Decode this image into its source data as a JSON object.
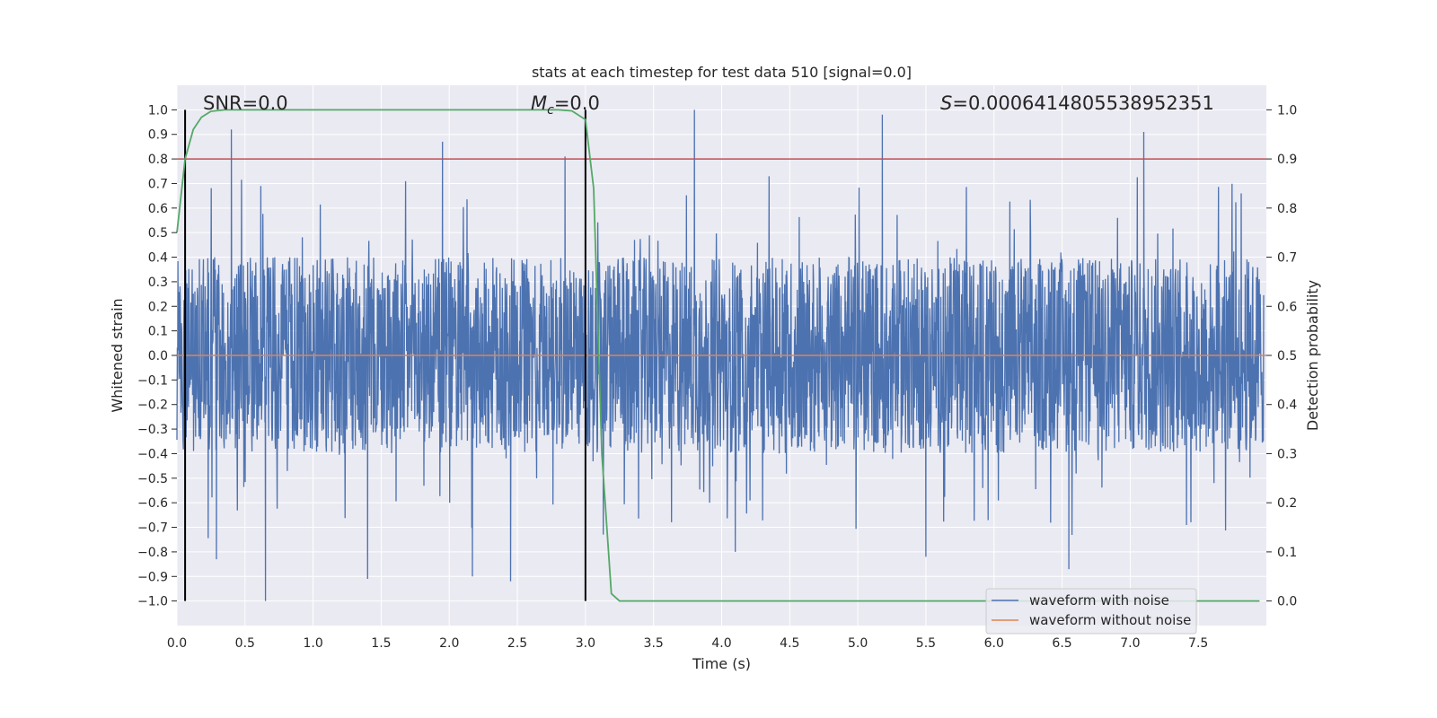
{
  "chart_data": {
    "type": "line",
    "title": "stats at each timestep for test data 510 [signal=0.0]",
    "xlabel": "Time (s)",
    "ylabel_left": "Whitened strain",
    "ylabel_right": "Detection probability",
    "xlim": [
      0.0,
      8.0
    ],
    "ylim_left": [
      -1.1,
      1.1
    ],
    "ylim_right": [
      -0.05,
      1.05
    ],
    "x_ticks": [
      "0.0",
      "0.5",
      "1.0",
      "1.5",
      "2.0",
      "2.5",
      "3.0",
      "3.5",
      "4.0",
      "4.5",
      "5.0",
      "5.5",
      "6.0",
      "6.5",
      "7.0",
      "7.5"
    ],
    "x_tick_values": [
      0.0,
      0.5,
      1.0,
      1.5,
      2.0,
      2.5,
      3.0,
      3.5,
      4.0,
      4.5,
      5.0,
      5.5,
      6.0,
      6.5,
      7.0,
      7.5
    ],
    "y_left_ticks": [
      "1.0",
      "0.9",
      "0.8",
      "0.7",
      "0.6",
      "0.5",
      "0.4",
      "0.3",
      "0.2",
      "0.1",
      "0.0",
      "−0.1",
      "−0.2",
      "−0.3",
      "−0.4",
      "−0.5",
      "−0.6",
      "−0.7",
      "−0.8",
      "−0.9",
      "−1.0"
    ],
    "y_left_tick_values": [
      1.0,
      0.9,
      0.8,
      0.7,
      0.6,
      0.5,
      0.4,
      0.3,
      0.2,
      0.1,
      0.0,
      -0.1,
      -0.2,
      -0.3,
      -0.4,
      -0.5,
      -0.6,
      -0.7,
      -0.8,
      -0.9,
      -1.0
    ],
    "y_right_ticks": [
      "1.0",
      "0.9",
      "0.8",
      "0.7",
      "0.6",
      "0.5",
      "0.4",
      "0.3",
      "0.2",
      "0.1",
      "0.0"
    ],
    "y_right_tick_values": [
      1.0,
      0.9,
      0.8,
      0.7,
      0.6,
      0.5,
      0.4,
      0.3,
      0.2,
      0.1,
      0.0
    ],
    "annotations": {
      "snr": "SNR=0.0",
      "mc_symbol": "M",
      "mc_sub": "c",
      "mc_value": "=0.0",
      "s_symbol": "S",
      "s_value": "=0.0006414805538952351"
    },
    "vertical_markers_x": [
      0.06,
      3.0
    ],
    "threshold": {
      "value": 0.9,
      "axis": "right",
      "color": "#c44e52"
    },
    "series": [
      {
        "name": "waveform with noise",
        "color": "#4c72b0",
        "axis": "left",
        "description": "dense noise, mostly within ±0.4 with spikes to ±1.0",
        "core_amplitude": 0.4,
        "peak_spikes": [
          {
            "x": 0.4,
            "y": 0.92
          },
          {
            "x": 1.95,
            "y": 0.87
          },
          {
            "x": 2.85,
            "y": 0.81
          },
          {
            "x": 3.8,
            "y": 1.0
          },
          {
            "x": 5.18,
            "y": 0.98
          },
          {
            "x": 7.1,
            "y": 0.91
          },
          {
            "x": 0.65,
            "y": -1.0
          },
          {
            "x": 1.4,
            "y": -0.91
          },
          {
            "x": 2.45,
            "y": -0.92
          },
          {
            "x": 2.17,
            "y": -0.9
          },
          {
            "x": 0.29,
            "y": -0.83
          },
          {
            "x": 6.55,
            "y": -0.87
          },
          {
            "x": 4.1,
            "y": -0.8
          },
          {
            "x": 5.5,
            "y": -0.82
          }
        ]
      },
      {
        "name": "waveform without noise",
        "color": "#dd8452",
        "axis": "left",
        "x": [
          0.0,
          8.0
        ],
        "y": [
          0.0,
          0.0
        ]
      },
      {
        "name": "detection probability",
        "color": "#55a868",
        "axis": "right",
        "x": [
          0.0,
          0.06,
          0.12,
          0.18,
          0.25,
          0.35,
          0.5,
          2.8,
          2.9,
          3.0,
          3.06,
          3.12,
          3.19,
          3.25,
          7.95
        ],
        "y": [
          0.75,
          0.9,
          0.96,
          0.985,
          0.997,
          1.0,
          1.0,
          1.0,
          0.998,
          0.98,
          0.84,
          0.3,
          0.015,
          0.0,
          0.0
        ]
      }
    ],
    "legend": {
      "position": "lower-right",
      "entries": [
        {
          "label": "waveform with noise",
          "color": "#4c72b0"
        },
        {
          "label": "waveform without noise",
          "color": "#dd8452"
        }
      ]
    }
  }
}
